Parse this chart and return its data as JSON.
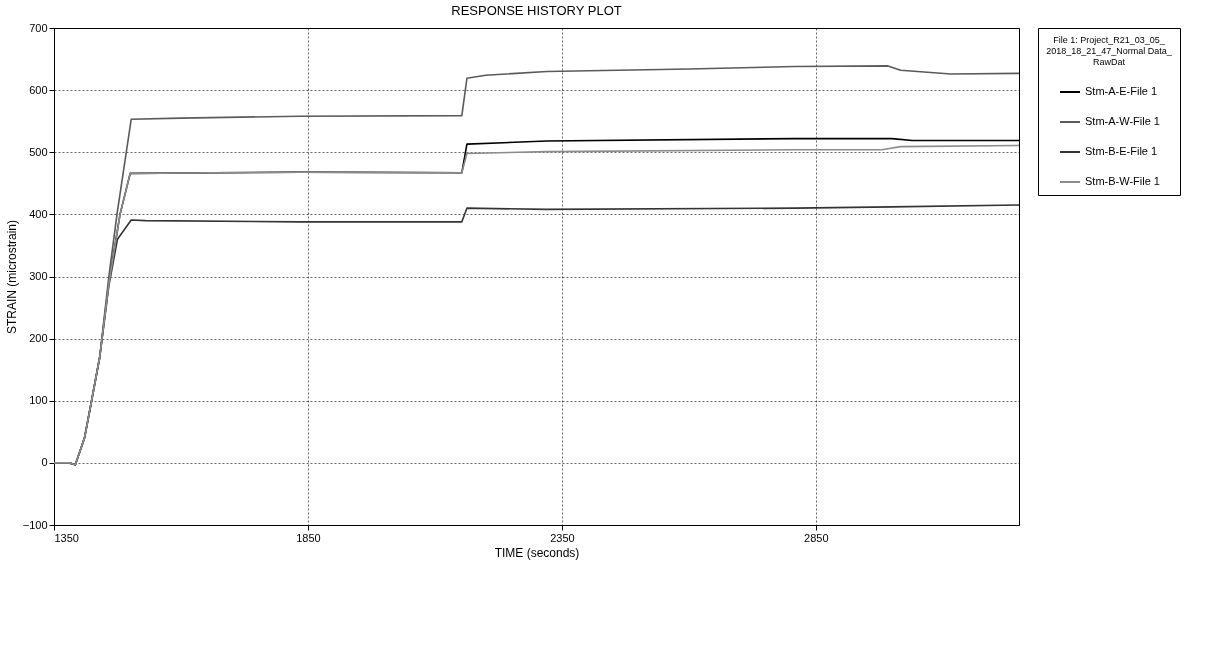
{
  "chart_data": {
    "type": "line",
    "title": "RESPONSE HISTORY PLOT",
    "xlabel": "TIME (seconds)",
    "ylabel": "STRAIN (microstrain)",
    "legend_title": "File 1: Project_R21_03_05_2018_18_21_47_Normal Data_RawDat",
    "xlim": [
      1350,
      3250
    ],
    "ylim": [
      -100,
      700
    ],
    "xticks": [
      1350,
      1850,
      2350,
      2850
    ],
    "yticks": [
      -100,
      0,
      100,
      200,
      300,
      400,
      500,
      600,
      700
    ],
    "grid": true,
    "legend": "right",
    "marker": "none",
    "line_style": "solid",
    "series": [
      {
        "name": "Stm-A-E-File 1",
        "color": "#000000",
        "x": [
          1350,
          1380,
          1392,
          1410,
          1424,
          1440,
          1458,
          1480,
          1500,
          1834,
          2153,
          2163,
          2320,
          2809,
          3000,
          3040,
          3250
        ],
        "values": [
          0,
          0,
          -3,
          40,
          100,
          170,
          290,
          400,
          466,
          468,
          467,
          513,
          518,
          522,
          522,
          519,
          519
        ]
      },
      {
        "name": "Stm-A-W-File 1",
        "color": "#5a5a5a",
        "x": [
          1350,
          1380,
          1392,
          1410,
          1424,
          1440,
          1458,
          1474,
          1502,
          1600,
          1834,
          2153,
          2163,
          2200,
          2320,
          2600,
          2809,
          2992,
          3017,
          3116,
          3250
        ],
        "values": [
          0,
          0,
          -3,
          40,
          100,
          170,
          300,
          400,
          553,
          555,
          558,
          559,
          619,
          624,
          630,
          634,
          638,
          639,
          632,
          626,
          627
        ]
      },
      {
        "name": "Stm-B-E-File 1",
        "color": "#333333",
        "x": [
          1350,
          1380,
          1392,
          1410,
          1424,
          1440,
          1458,
          1475,
          1502,
          1530,
          1834,
          2153,
          2163,
          2320,
          2809,
          3000,
          3250
        ],
        "values": [
          0,
          0,
          -3,
          40,
          100,
          170,
          285,
          360,
          391,
          390,
          388,
          388,
          410,
          408,
          410,
          412,
          415
        ]
      },
      {
        "name": "Stm-B-W-File 1",
        "color": "#8c8c8c",
        "x": [
          1350,
          1380,
          1392,
          1410,
          1424,
          1440,
          1458,
          1480,
          1500,
          1834,
          2153,
          2163,
          2320,
          2809,
          2980,
          3017,
          3250
        ],
        "values": [
          0,
          0,
          -3,
          40,
          100,
          170,
          288,
          400,
          466,
          468,
          467,
          498,
          501,
          504,
          504,
          509,
          511
        ]
      }
    ]
  }
}
